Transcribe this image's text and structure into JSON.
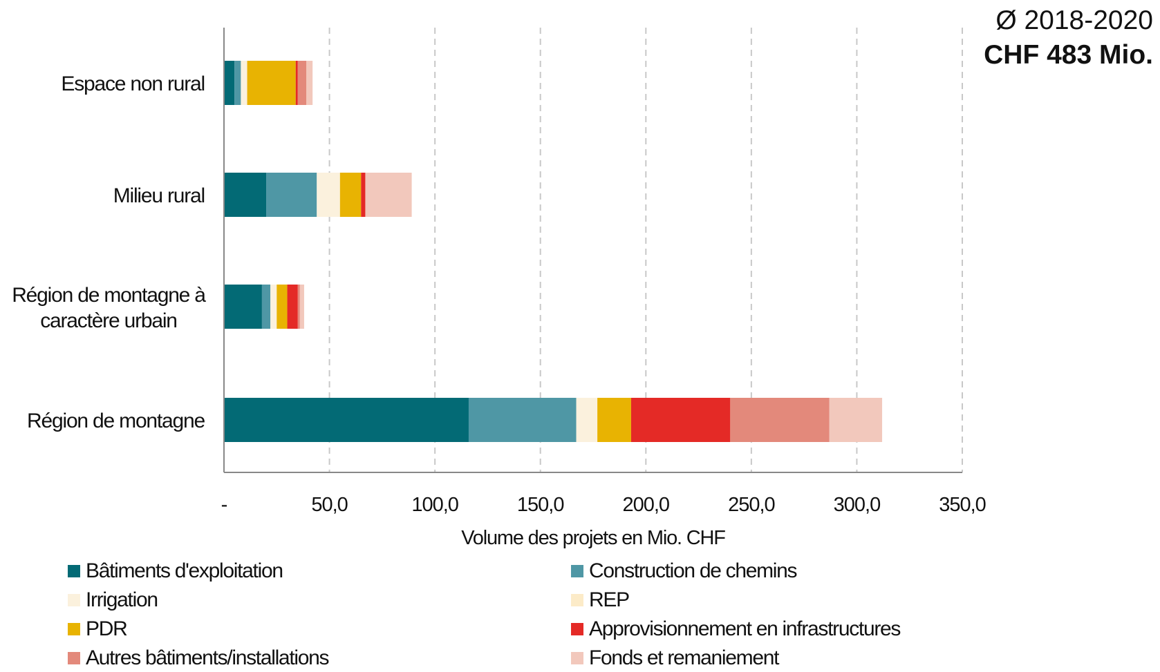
{
  "header": {
    "period": "Ø 2018-2020",
    "total": "CHF 483 Mio."
  },
  "chart_data": {
    "type": "bar",
    "orientation": "horizontal",
    "stacked": true,
    "categories": [
      "Espace non rural",
      "Milieu rural",
      "Région de montagne à caractère urbain",
      "Région de montagne"
    ],
    "category_lines": [
      [
        "Espace non rural"
      ],
      [
        "Milieu rural"
      ],
      [
        "Région de montagne à",
        "caractère urbain"
      ],
      [
        "Région de montagne"
      ]
    ],
    "series": [
      {
        "name": "Bâtiments d'exploitation",
        "color": "#036a75",
        "values": [
          5,
          20,
          18,
          116
        ]
      },
      {
        "name": "Construction de chemins",
        "color": "#4f97a5",
        "values": [
          3,
          24,
          4,
          51
        ]
      },
      {
        "name": "Irrigation",
        "color": "#fbf1dd",
        "values": [
          3,
          11,
          3,
          10
        ]
      },
      {
        "name": "REP",
        "color": "#fcebc8",
        "values": [
          0,
          0,
          0,
          0
        ]
      },
      {
        "name": "PDR",
        "color": "#e8b302",
        "values": [
          23,
          10,
          5,
          16
        ]
      },
      {
        "name": "Approvisionnement en infrastructures",
        "color": "#e42a26",
        "values": [
          1,
          2,
          5,
          47
        ]
      },
      {
        "name": "Autres bâtiments/installations",
        "color": "#e3897b",
        "values": [
          4,
          0,
          1,
          47
        ]
      },
      {
        "name": "Fonds et remaniement",
        "color": "#f2c8bc",
        "values": [
          3,
          22,
          2,
          25
        ]
      }
    ],
    "xlim": [
      0,
      350
    ],
    "xticks": [
      0,
      50,
      100,
      150,
      200,
      250,
      300,
      350
    ],
    "xtick_labels": [
      "-",
      "50,0",
      "100,0",
      "150,0",
      "200,0",
      "250,0",
      "300,0",
      "350,0"
    ],
    "xlabel": "Volume des projets en Mio. CHF",
    "grid": "vertical dashed",
    "legend_position": "bottom"
  }
}
